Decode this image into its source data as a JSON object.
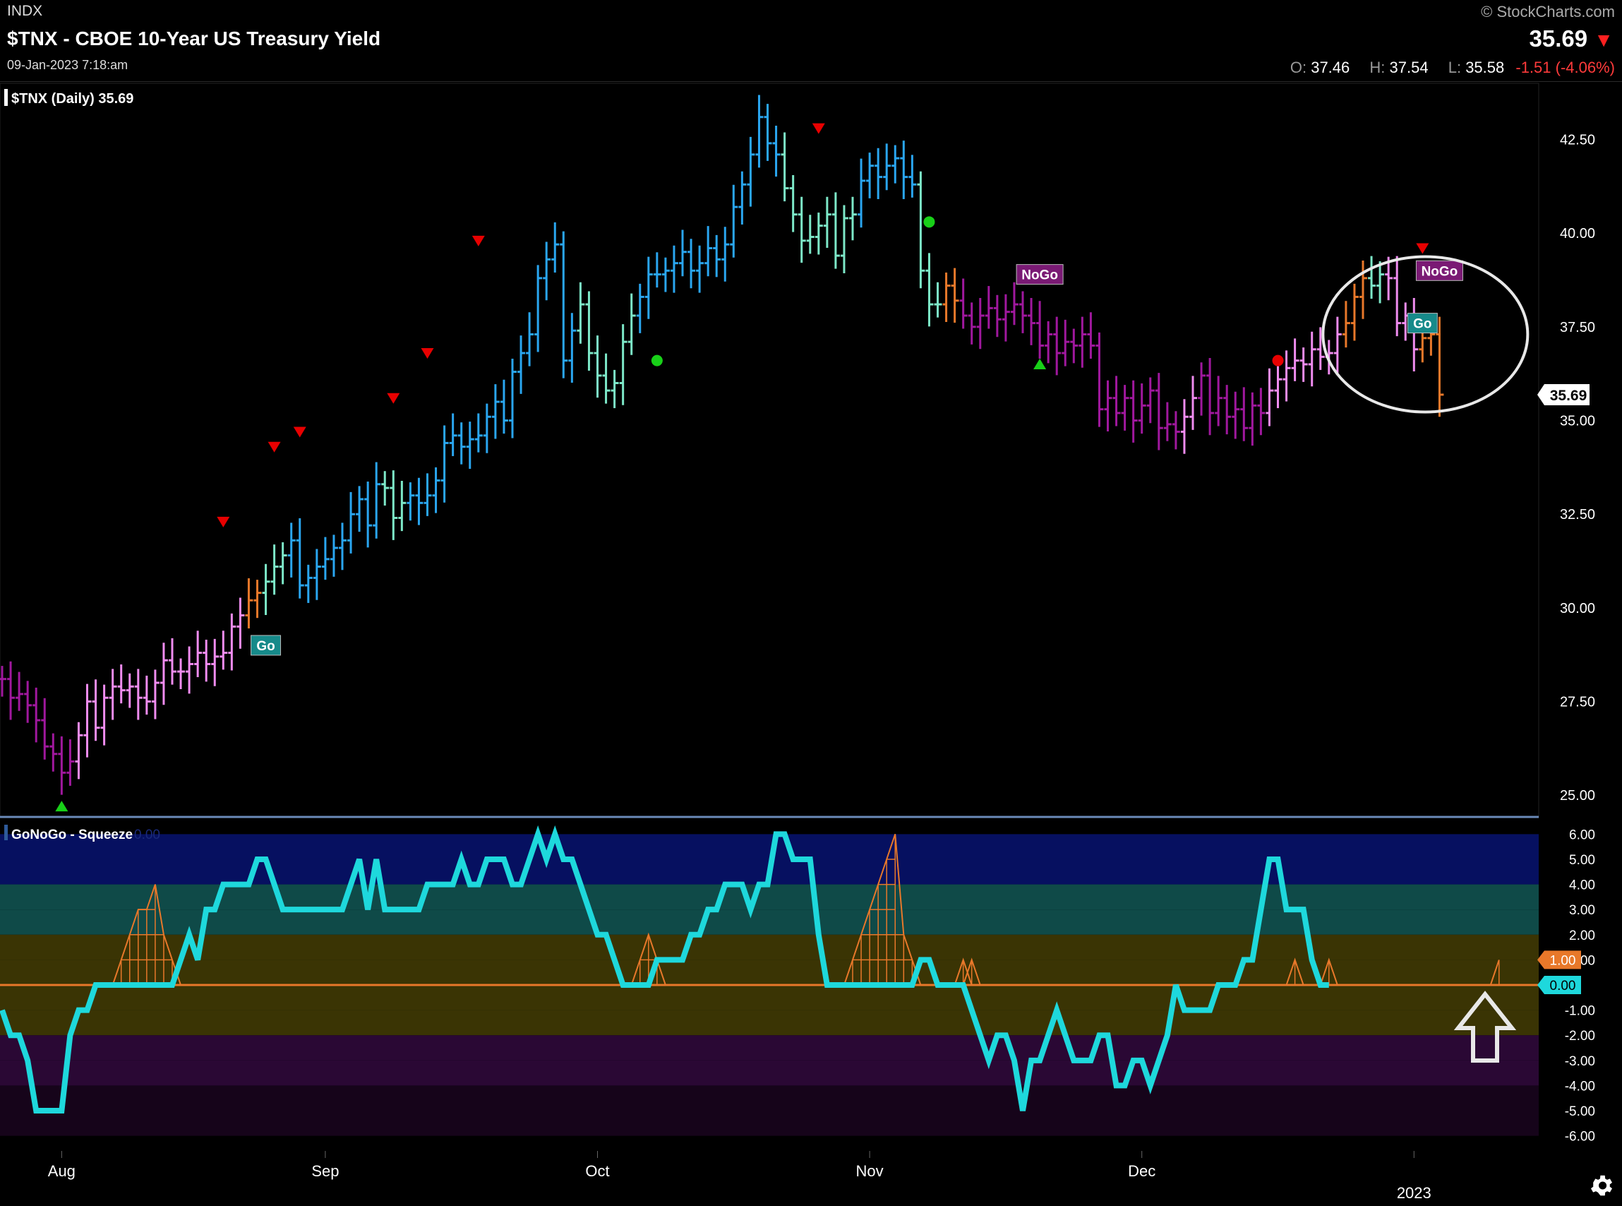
{
  "header": {
    "exchange": "INDX",
    "title": "$TNX - CBOE 10-Year US Treasury Yield",
    "datetime": "09-Jan-2023 7:18:am",
    "copyright": "© StockCharts.com",
    "last_price": "35.69",
    "ohlc": {
      "o_label": "O:",
      "o_value": "37.46",
      "h_label": "H:",
      "h_value": "37.54",
      "l_label": "L:",
      "l_value": "35.58",
      "change": "-1.51 (-4.06%)"
    }
  },
  "colors": {
    "background": "#000000",
    "strong_go": "#2aa6f0",
    "weak_go": "#7de8c8",
    "neutral": "#e8782a",
    "weak_nogo": "#f08cf0",
    "strong_nogo": "#a0189e",
    "oscillator": "#1ed8dc",
    "squeeze": "#e8782a",
    "up_marker": "#18d018",
    "down_marker": "#e80000"
  },
  "chart_data": [
    {
      "type": "ohlc_bar",
      "legend": "$TNX (Daily) 35.69",
      "ylim": [
        24.4,
        44.0
      ],
      "yticks": [
        "25.00",
        "27.50",
        "30.00",
        "32.50",
        "35.00",
        "37.50",
        "40.00",
        "42.50"
      ],
      "xticks": [
        {
          "label": "Aug",
          "i": 7
        },
        {
          "label": "Sep",
          "i": 38
        },
        {
          "label": "Oct",
          "i": 70
        },
        {
          "label": "Nov",
          "i": 102
        },
        {
          "label": "Dec",
          "i": 134
        },
        {
          "label": "2023",
          "i": 166
        }
      ],
      "current_value": "35.69",
      "bars": [
        {
          "c": 28.1,
          "r": "mg"
        },
        {
          "c": 27.6,
          "r": "mg"
        },
        {
          "c": 27.7,
          "r": "mg"
        },
        {
          "c": 27.4,
          "r": "mg"
        },
        {
          "c": 27.0,
          "r": "mg"
        },
        {
          "c": 26.3,
          "r": "mg"
        },
        {
          "c": 26.1,
          "r": "mg"
        },
        {
          "c": 25.6,
          "r": "mg"
        },
        {
          "c": 25.9,
          "r": "mg"
        },
        {
          "c": 26.6,
          "r": "pk"
        },
        {
          "c": 27.5,
          "r": "pk"
        },
        {
          "c": 26.8,
          "r": "pk"
        },
        {
          "c": 27.6,
          "r": "pk"
        },
        {
          "c": 27.9,
          "r": "pk"
        },
        {
          "c": 27.8,
          "r": "pk"
        },
        {
          "c": 27.9,
          "r": "pk"
        },
        {
          "c": 27.6,
          "r": "pk"
        },
        {
          "c": 27.5,
          "r": "pk"
        },
        {
          "c": 28.0,
          "r": "pk"
        },
        {
          "c": 28.6,
          "r": "pk"
        },
        {
          "c": 28.3,
          "r": "pk"
        },
        {
          "c": 28.3,
          "r": "pk"
        },
        {
          "c": 28.5,
          "r": "pk"
        },
        {
          "c": 28.8,
          "r": "pk"
        },
        {
          "c": 28.5,
          "r": "pk"
        },
        {
          "c": 28.7,
          "r": "pk"
        },
        {
          "c": 28.8,
          "r": "pk"
        },
        {
          "c": 29.5,
          "r": "pk"
        },
        {
          "c": 29.8,
          "r": "pk"
        },
        {
          "c": 30.2,
          "r": "or"
        },
        {
          "c": 30.4,
          "r": "or"
        },
        {
          "c": 30.7,
          "r": "lt"
        },
        {
          "c": 31.1,
          "r": "lt"
        },
        {
          "c": 31.4,
          "r": "lt"
        },
        {
          "c": 31.8,
          "r": "bl"
        },
        {
          "c": 30.6,
          "r": "bl"
        },
        {
          "c": 30.8,
          "r": "bl"
        },
        {
          "c": 31.1,
          "r": "bl"
        },
        {
          "c": 31.3,
          "r": "bl"
        },
        {
          "c": 31.6,
          "r": "bl"
        },
        {
          "c": 31.8,
          "r": "bl"
        },
        {
          "c": 32.5,
          "r": "bl"
        },
        {
          "c": 32.9,
          "r": "bl"
        },
        {
          "c": 32.2,
          "r": "bl"
        },
        {
          "c": 33.3,
          "r": "bl"
        },
        {
          "c": 33.2,
          "r": "lt"
        },
        {
          "c": 32.4,
          "r": "lt"
        },
        {
          "c": 32.8,
          "r": "lt"
        },
        {
          "c": 33.0,
          "r": "bl"
        },
        {
          "c": 32.8,
          "r": "bl"
        },
        {
          "c": 33.0,
          "r": "bl"
        },
        {
          "c": 33.4,
          "r": "bl"
        },
        {
          "c": 34.4,
          "r": "bl"
        },
        {
          "c": 34.6,
          "r": "bl"
        },
        {
          "c": 34.3,
          "r": "bl"
        },
        {
          "c": 34.5,
          "r": "bl"
        },
        {
          "c": 34.6,
          "r": "bl"
        },
        {
          "c": 35.1,
          "r": "bl"
        },
        {
          "c": 35.5,
          "r": "bl"
        },
        {
          "c": 35.0,
          "r": "bl"
        },
        {
          "c": 36.3,
          "r": "bl"
        },
        {
          "c": 36.8,
          "r": "bl"
        },
        {
          "c": 37.3,
          "r": "bl"
        },
        {
          "c": 38.8,
          "r": "bl"
        },
        {
          "c": 39.3,
          "r": "bl"
        },
        {
          "c": 39.7,
          "r": "bl"
        },
        {
          "c": 36.6,
          "r": "bl"
        },
        {
          "c": 37.4,
          "r": "bl"
        },
        {
          "c": 38.1,
          "r": "lt"
        },
        {
          "c": 36.8,
          "r": "lt"
        },
        {
          "c": 36.2,
          "r": "lt"
        },
        {
          "c": 35.8,
          "r": "lt"
        },
        {
          "c": 36.0,
          "r": "lt"
        },
        {
          "c": 37.1,
          "r": "lt"
        },
        {
          "c": 37.8,
          "r": "lt"
        },
        {
          "c": 38.3,
          "r": "bl"
        },
        {
          "c": 38.9,
          "r": "bl"
        },
        {
          "c": 38.9,
          "r": "bl"
        },
        {
          "c": 39.0,
          "r": "bl"
        },
        {
          "c": 39.2,
          "r": "bl"
        },
        {
          "c": 39.5,
          "r": "bl"
        },
        {
          "c": 39.0,
          "r": "bl"
        },
        {
          "c": 39.2,
          "r": "bl"
        },
        {
          "c": 39.6,
          "r": "bl"
        },
        {
          "c": 39.3,
          "r": "bl"
        },
        {
          "c": 39.7,
          "r": "bl"
        },
        {
          "c": 40.7,
          "r": "bl"
        },
        {
          "c": 41.3,
          "r": "bl"
        },
        {
          "c": 42.1,
          "r": "bl"
        },
        {
          "c": 43.1,
          "r": "bl"
        },
        {
          "c": 42.4,
          "r": "bl"
        },
        {
          "c": 42.1,
          "r": "bl"
        },
        {
          "c": 41.2,
          "r": "lt"
        },
        {
          "c": 40.5,
          "r": "lt"
        },
        {
          "c": 39.8,
          "r": "lt"
        },
        {
          "c": 39.9,
          "r": "lt"
        },
        {
          "c": 40.2,
          "r": "lt"
        },
        {
          "c": 40.5,
          "r": "lt"
        },
        {
          "c": 39.4,
          "r": "lt"
        },
        {
          "c": 40.4,
          "r": "lt"
        },
        {
          "c": 40.5,
          "r": "lt"
        },
        {
          "c": 41.4,
          "r": "bl"
        },
        {
          "c": 41.8,
          "r": "bl"
        },
        {
          "c": 41.5,
          "r": "bl"
        },
        {
          "c": 41.8,
          "r": "bl"
        },
        {
          "c": 42.0,
          "r": "bl"
        },
        {
          "c": 41.5,
          "r": "bl"
        },
        {
          "c": 41.3,
          "r": "bl"
        },
        {
          "c": 39.0,
          "r": "lt"
        },
        {
          "c": 38.1,
          "r": "lt"
        },
        {
          "c": 38.1,
          "r": "lt"
        },
        {
          "c": 38.6,
          "r": "or"
        },
        {
          "c": 38.2,
          "r": "or"
        },
        {
          "c": 37.8,
          "r": "mg"
        },
        {
          "c": 37.5,
          "r": "mg"
        },
        {
          "c": 37.8,
          "r": "mg"
        },
        {
          "c": 38.0,
          "r": "mg"
        },
        {
          "c": 37.7,
          "r": "mg"
        },
        {
          "c": 37.9,
          "r": "mg"
        },
        {
          "c": 38.1,
          "r": "mg"
        },
        {
          "c": 37.8,
          "r": "mg"
        },
        {
          "c": 37.6,
          "r": "mg"
        },
        {
          "c": 37.0,
          "r": "mg"
        },
        {
          "c": 37.3,
          "r": "mg"
        },
        {
          "c": 36.8,
          "r": "mg"
        },
        {
          "c": 37.1,
          "r": "mg"
        },
        {
          "c": 37.0,
          "r": "mg"
        },
        {
          "c": 37.3,
          "r": "mg"
        },
        {
          "c": 37.0,
          "r": "mg"
        },
        {
          "c": 35.3,
          "r": "mg"
        },
        {
          "c": 35.6,
          "r": "mg"
        },
        {
          "c": 35.2,
          "r": "mg"
        },
        {
          "c": 35.6,
          "r": "mg"
        },
        {
          "c": 35.0,
          "r": "mg"
        },
        {
          "c": 35.4,
          "r": "mg"
        },
        {
          "c": 35.8,
          "r": "mg"
        },
        {
          "c": 34.8,
          "r": "mg"
        },
        {
          "c": 34.9,
          "r": "mg"
        },
        {
          "c": 34.7,
          "r": "mg"
        },
        {
          "c": 35.1,
          "r": "pk"
        },
        {
          "c": 35.6,
          "r": "pk"
        },
        {
          "c": 36.2,
          "r": "mg"
        },
        {
          "c": 35.2,
          "r": "mg"
        },
        {
          "c": 35.6,
          "r": "mg"
        },
        {
          "c": 35.1,
          "r": "mg"
        },
        {
          "c": 35.3,
          "r": "mg"
        },
        {
          "c": 34.8,
          "r": "mg"
        },
        {
          "c": 35.4,
          "r": "mg"
        },
        {
          "c": 35.2,
          "r": "mg"
        },
        {
          "c": 35.8,
          "r": "pk"
        },
        {
          "c": 36.1,
          "r": "pk"
        },
        {
          "c": 36.4,
          "r": "pk"
        },
        {
          "c": 36.6,
          "r": "pk"
        },
        {
          "c": 36.5,
          "r": "pk"
        },
        {
          "c": 36.9,
          "r": "pk"
        },
        {
          "c": 36.7,
          "r": "pk"
        },
        {
          "c": 36.8,
          "r": "pk"
        },
        {
          "c": 37.3,
          "r": "pk"
        },
        {
          "c": 37.6,
          "r": "or"
        },
        {
          "c": 38.3,
          "r": "or"
        },
        {
          "c": 38.8,
          "r": "or"
        },
        {
          "c": 38.6,
          "r": "lt"
        },
        {
          "c": 38.9,
          "r": "lt"
        },
        {
          "c": 38.8,
          "r": "pk"
        },
        {
          "c": 37.6,
          "r": "pk"
        },
        {
          "c": 37.8,
          "r": "pk"
        },
        {
          "c": 36.9,
          "r": "pk"
        },
        {
          "c": 37.2,
          "r": "or"
        },
        {
          "c": 37.3,
          "r": "or"
        },
        {
          "c": 35.69,
          "r": "or"
        }
      ],
      "markers": [
        {
          "i": 7,
          "shape": "up",
          "val": 24.7
        },
        {
          "i": 26,
          "shape": "down",
          "val": 32.3
        },
        {
          "i": 32,
          "shape": "down",
          "val": 34.3
        },
        {
          "i": 35,
          "shape": "down",
          "val": 34.7
        },
        {
          "i": 46,
          "shape": "down",
          "val": 35.6
        },
        {
          "i": 50,
          "shape": "down",
          "val": 36.8
        },
        {
          "i": 56,
          "shape": "down",
          "val": 39.8
        },
        {
          "i": 77,
          "shape": "dot",
          "val": 36.6
        },
        {
          "i": 96,
          "shape": "down",
          "val": 42.8
        },
        {
          "i": 109,
          "shape": "dot",
          "val": 40.3
        },
        {
          "i": 122,
          "shape": "up",
          "val": 36.5
        },
        {
          "i": 150,
          "shape": "dot",
          "val": 36.6
        },
        {
          "i": 167,
          "shape": "down",
          "val": 39.6
        }
      ],
      "labels": [
        {
          "i": 31,
          "text": "Go",
          "kind": "go",
          "val": 29.0
        },
        {
          "i": 122,
          "text": "NoGo",
          "kind": "nogo",
          "val": 38.9
        },
        {
          "i": 167,
          "text": "Go",
          "kind": "go",
          "val": 37.6
        },
        {
          "i": 169,
          "text": "NoGo",
          "kind": "nogo",
          "val": 39.0
        }
      ],
      "circle": {
        "i": 167,
        "val": 37.3
      }
    },
    {
      "type": "line",
      "legend": "GoNoGo - Squeeze",
      "legend_value": "0.00",
      "ylim": [
        -6.6,
        6.6
      ],
      "yticks": [
        "6.00",
        "5.00",
        "4.00",
        "3.00",
        "2.00",
        "1.00",
        "-1.00",
        "-2.00",
        "-3.00",
        "-4.00",
        "-5.00",
        "-6.00"
      ],
      "zero_label": "0.00",
      "squeeze_label": "1.00",
      "oscillator": [
        -1,
        -2,
        -2,
        -3,
        -5,
        -5,
        -5,
        -5,
        -2,
        -1,
        -1,
        0,
        0,
        0,
        0,
        0,
        0,
        0,
        0,
        0,
        0,
        1,
        2,
        1,
        3,
        3,
        4,
        4,
        4,
        4,
        5,
        5,
        4,
        3,
        3,
        3,
        3,
        3,
        3,
        3,
        3,
        4,
        5,
        3,
        5,
        3,
        3,
        3,
        3,
        3,
        4,
        4,
        4,
        4,
        5,
        4,
        4,
        5,
        5,
        5,
        4,
        4,
        5,
        6,
        5,
        6,
        5,
        5,
        4,
        3,
        2,
        2,
        1,
        0,
        0,
        0,
        0,
        1,
        1,
        1,
        1,
        2,
        2,
        3,
        3,
        4,
        4,
        4,
        3,
        4,
        4,
        6,
        6,
        5,
        5,
        5,
        2,
        0,
        0,
        0,
        0,
        0,
        0,
        0,
        0,
        0,
        0,
        0,
        1,
        1,
        0,
        0,
        0,
        0,
        -1,
        -2,
        -3,
        -2,
        -2,
        -3,
        -5,
        -3,
        -3,
        -2,
        -1,
        -2,
        -3,
        -3,
        -3,
        -2,
        -2,
        -4,
        -4,
        -3,
        -3,
        -4,
        -3,
        -2,
        0,
        -1,
        -1,
        -1,
        -1,
        0,
        0,
        0,
        1,
        1,
        3,
        5,
        5,
        3,
        3,
        3,
        1,
        0,
        0
      ],
      "squeeze": [
        {
          "i": 13,
          "levels": [
            0,
            1,
            2,
            3,
            3,
            4,
            2,
            1,
            0
          ]
        },
        {
          "i": 74,
          "levels": [
            0,
            1,
            2,
            1,
            0
          ]
        },
        {
          "i": 99,
          "levels": [
            0,
            1,
            2,
            3,
            4,
            5,
            6,
            2,
            1,
            0
          ]
        },
        {
          "i": 112,
          "levels": [
            0,
            1,
            0
          ]
        },
        {
          "i": 113,
          "levels": [
            0,
            1,
            0
          ]
        },
        {
          "i": 151,
          "levels": [
            0,
            1,
            0
          ]
        },
        {
          "i": 155,
          "levels": [
            0,
            1,
            0
          ]
        },
        {
          "i": 175,
          "levels": [
            0,
            1
          ]
        }
      ]
    }
  ]
}
